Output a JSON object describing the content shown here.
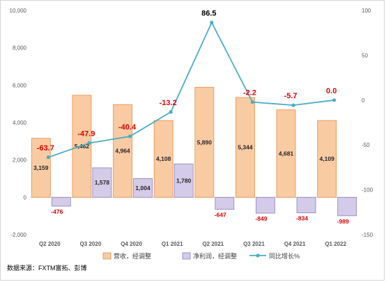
{
  "chart_data": {
    "type": "bar",
    "categories": [
      "Q2 2020",
      "Q3 2020",
      "Q4 2020",
      "Q1 2021",
      "Q2 2021",
      "Q3 2021",
      "Q4 2021",
      "Q1 2022"
    ],
    "series": [
      {
        "name": "营收，经调整",
        "type": "bar",
        "axis": "left",
        "color": "#f8cba3",
        "stroke": "#ed8c45",
        "values": [
          3159,
          5462,
          4964,
          4108,
          5890,
          5344,
          4681,
          4109
        ],
        "labels": [
          "3,159",
          "5,462",
          "4,964",
          "4,108",
          "5,890",
          "5,344",
          "4,681",
          "4,109"
        ]
      },
      {
        "name": "净利润，经调整",
        "type": "bar",
        "axis": "left",
        "color": "#d3cbe8",
        "stroke": "#8c7fbe",
        "values": [
          -476,
          1578,
          1004,
          1780,
          -647,
          -849,
          -834,
          -989
        ],
        "labels": [
          "-476",
          "1,578",
          "1,004",
          "1,780",
          "-647",
          "-849",
          "-834",
          "-989"
        ]
      },
      {
        "name": "同比增长%",
        "type": "line",
        "axis": "right",
        "color": "#4aacc6",
        "values": [
          -63.7,
          -47.9,
          -40.4,
          -13.2,
          86.5,
          -2.2,
          -5.7,
          0.0
        ],
        "labels": [
          "-63.7",
          "-47.9",
          "-40.4",
          "-13.2",
          "86.5",
          "-2.2",
          "-5.7",
          "0.0"
        ]
      }
    ],
    "ylim_left": [
      -2000,
      10000
    ],
    "yticks_left": [
      "-2,000",
      "0",
      "2,000",
      "4,000",
      "6,000",
      "8,000",
      "10,000"
    ],
    "ylim_right": [
      -150,
      100
    ],
    "yticks_right": [
      "-150",
      "-100",
      "-50",
      "0",
      "50",
      "100"
    ],
    "grid": false,
    "legend_position": "bottom"
  },
  "source_note": "数据来源：FXTM富拓、彭博",
  "colors": {
    "red_label": "#e00000",
    "axis_text": "#595959"
  }
}
